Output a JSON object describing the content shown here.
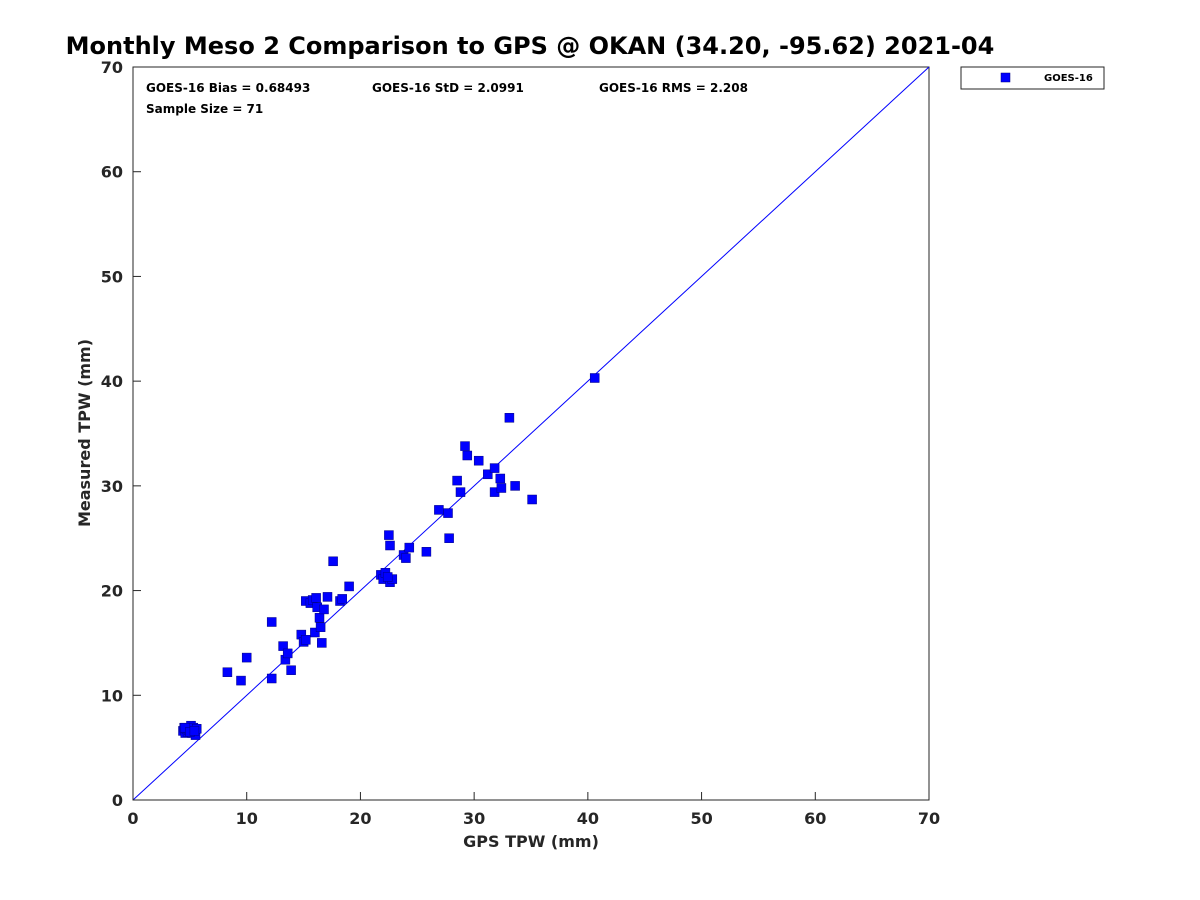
{
  "chart_data": {
    "type": "scatter",
    "title": "Monthly Meso 2 Comparison to GPS @ OKAN (34.20, -95.62) 2021-04",
    "xlabel": "GPS TPW (mm)",
    "ylabel": "Measured TPW (mm)",
    "xlim": [
      0,
      70
    ],
    "ylim": [
      0,
      70
    ],
    "xticks": [
      "0",
      "10",
      "20",
      "30",
      "40",
      "50",
      "60",
      "70"
    ],
    "yticks": [
      "0",
      "10",
      "20",
      "30",
      "40",
      "50",
      "60",
      "70"
    ],
    "grid": false,
    "legend_position": "outside-top-right",
    "stats": {
      "bias": "GOES-16 Bias = 0.68493",
      "std": "GOES-16 StD = 2.0991",
      "rms": "GOES-16 RMS = 2.208",
      "sample_size": "Sample Size = 71"
    },
    "reference_line": {
      "x": [
        0,
        70
      ],
      "y": [
        0,
        70
      ],
      "color": "#0000ff"
    },
    "series": [
      {
        "name": "GOES-16",
        "color": "#0000ff",
        "marker": "square",
        "x": [
          4.4,
          4.5,
          4.6,
          4.7,
          4.8,
          4.9,
          5.0,
          5.1,
          5.2,
          5.3,
          5.5,
          5.6,
          4.6,
          5.0,
          5.4,
          8.3,
          9.5,
          10.0,
          12.2,
          12.2,
          13.2,
          13.4,
          13.6,
          13.9,
          14.8,
          15.0,
          15.2,
          15.2,
          15.6,
          15.8,
          16.0,
          16.1,
          16.2,
          16.4,
          16.5,
          16.6,
          16.8,
          17.1,
          17.6,
          18.2,
          18.4,
          19.0,
          21.8,
          22.0,
          22.2,
          22.5,
          22.6,
          22.6,
          22.8,
          23.8,
          24.0,
          24.3,
          25.8,
          26.9,
          27.7,
          27.8,
          28.5,
          28.8,
          29.2,
          29.4,
          30.4,
          31.2,
          31.8,
          31.8,
          32.3,
          32.4,
          33.1,
          33.6,
          35.1,
          40.6,
          22.4
        ],
        "y": [
          6.6,
          6.9,
          6.4,
          6.8,
          6.5,
          6.7,
          6.6,
          7.1,
          6.4,
          6.9,
          6.2,
          6.8,
          6.9,
          6.5,
          6.6,
          12.2,
          11.4,
          13.6,
          11.6,
          17.0,
          14.7,
          13.4,
          14.0,
          12.4,
          15.8,
          15.1,
          15.3,
          19.0,
          18.8,
          19.1,
          16.0,
          19.3,
          18.4,
          17.4,
          16.5,
          15.0,
          18.2,
          19.4,
          22.8,
          19.0,
          19.2,
          20.4,
          21.5,
          21.1,
          21.7,
          25.3,
          24.3,
          20.8,
          21.1,
          23.4,
          23.1,
          24.1,
          23.7,
          27.7,
          27.4,
          25.0,
          30.5,
          29.4,
          33.8,
          32.9,
          32.4,
          31.1,
          31.7,
          29.4,
          30.7,
          29.8,
          36.5,
          30.0,
          28.7,
          40.3,
          21.3
        ]
      }
    ]
  }
}
